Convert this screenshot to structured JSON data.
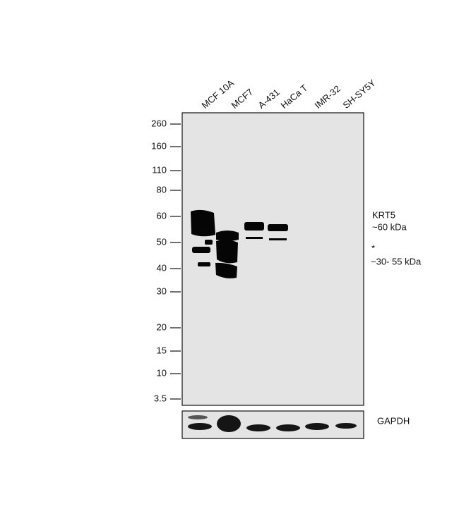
{
  "lanes": [
    "MCF 10A",
    "MCF7",
    "A-431",
    "HaCa T",
    "IMR-32",
    "SH-SY5Y"
  ],
  "markers": [
    "260",
    "160",
    "110",
    "80",
    "60",
    "50",
    "40",
    "30",
    "20",
    "15",
    "10",
    "3.5"
  ],
  "annotations": {
    "target": "KRT5",
    "target_size": "~60 kDa",
    "asterisk": "*",
    "other_size": "~30- 55 kDa"
  },
  "loading_control": "GAPDH"
}
